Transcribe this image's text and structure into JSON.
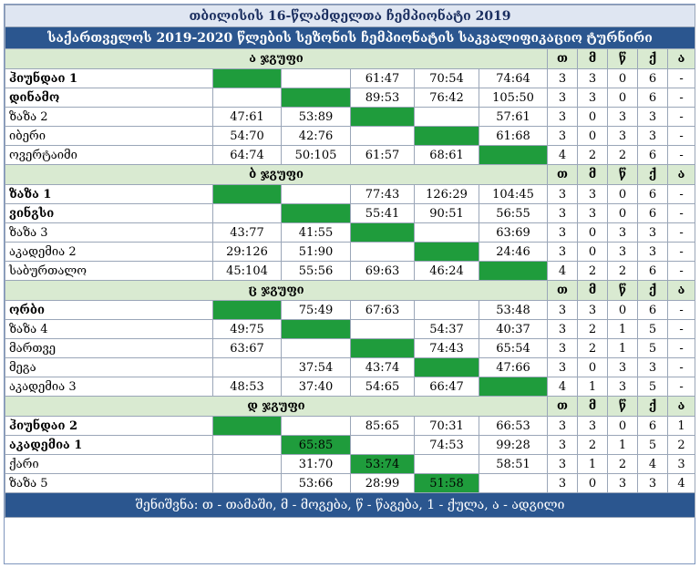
{
  "title": "თბილისის 16-წლამდელთა ჩემპიონატი 2019",
  "subtitle": "საქართველოს 2019-2020 წლების სეზონის ჩემპიონატის საკვალიფიკაციო ტურნირი",
  "stat_headers": [
    "თ",
    "მ",
    "წ",
    "ქ",
    "ა"
  ],
  "groups": [
    {
      "name": "ა ჯგუფი",
      "rows": [
        {
          "team": "ჰიუნდაი 1",
          "bold": true,
          "scores": [
            "",
            "",
            "61:47",
            "70:54",
            "74:64"
          ],
          "stats": [
            "3",
            "3",
            "0",
            "6",
            "-"
          ]
        },
        {
          "team": "დინამო",
          "bold": true,
          "scores": [
            "",
            "",
            "89:53",
            "76:42",
            "105:50"
          ],
          "stats": [
            "3",
            "3",
            "0",
            "6",
            "-"
          ]
        },
        {
          "team": "ზაზა 2",
          "bold": false,
          "scores": [
            "47:61",
            "53:89",
            "",
            "",
            "57:61"
          ],
          "stats": [
            "3",
            "0",
            "3",
            "3",
            "-"
          ]
        },
        {
          "team": "იბერი",
          "bold": false,
          "scores": [
            "54:70",
            "42:76",
            "",
            "",
            "61:68"
          ],
          "stats": [
            "3",
            "0",
            "3",
            "3",
            "-"
          ]
        },
        {
          "team": "ოვერტაიმი",
          "bold": false,
          "scores": [
            "64:74",
            "50:105",
            "61:57",
            "68:61",
            ""
          ],
          "stats": [
            "4",
            "2",
            "2",
            "6",
            "-"
          ]
        }
      ]
    },
    {
      "name": "ბ ჯგუფი",
      "rows": [
        {
          "team": "ზაზა 1",
          "bold": true,
          "scores": [
            "",
            "",
            "77:43",
            "126:29",
            "104:45"
          ],
          "stats": [
            "3",
            "3",
            "0",
            "6",
            "-"
          ]
        },
        {
          "team": "ვინგსი",
          "bold": true,
          "scores": [
            "",
            "",
            "55:41",
            "90:51",
            "56:55"
          ],
          "stats": [
            "3",
            "3",
            "0",
            "6",
            "-"
          ]
        },
        {
          "team": "ზაზა 3",
          "bold": false,
          "scores": [
            "43:77",
            "41:55",
            "",
            "",
            "63:69"
          ],
          "stats": [
            "3",
            "0",
            "3",
            "3",
            "-"
          ]
        },
        {
          "team": "აკადემია 2",
          "bold": false,
          "scores": [
            "29:126",
            "51:90",
            "",
            "",
            "24:46"
          ],
          "stats": [
            "3",
            "0",
            "3",
            "3",
            "-"
          ]
        },
        {
          "team": "საბურთალო",
          "bold": false,
          "scores": [
            "45:104",
            "55:56",
            "69:63",
            "46:24",
            ""
          ],
          "stats": [
            "4",
            "2",
            "2",
            "6",
            "-"
          ]
        }
      ]
    },
    {
      "name": "ც ჯგუფი",
      "rows": [
        {
          "team": "ორბი",
          "bold": true,
          "scores": [
            "",
            "75:49",
            "67:63",
            "",
            "53:48"
          ],
          "stats": [
            "3",
            "3",
            "0",
            "6",
            "-"
          ]
        },
        {
          "team": "ზაზა 4",
          "bold": false,
          "scores": [
            "49:75",
            "",
            "",
            "54:37",
            "40:37"
          ],
          "stats": [
            "3",
            "2",
            "1",
            "5",
            "-"
          ]
        },
        {
          "team": "მართვე",
          "bold": false,
          "scores": [
            "63:67",
            "",
            "",
            "74:43",
            "65:54"
          ],
          "stats": [
            "3",
            "2",
            "1",
            "5",
            "-"
          ]
        },
        {
          "team": "მეგა",
          "bold": false,
          "scores": [
            "",
            "37:54",
            "43:74",
            "",
            "47:66"
          ],
          "stats": [
            "3",
            "0",
            "3",
            "3",
            "-"
          ]
        },
        {
          "team": "აკადემია 3",
          "bold": false,
          "scores": [
            "48:53",
            "37:40",
            "54:65",
            "66:47",
            ""
          ],
          "stats": [
            "4",
            "1",
            "3",
            "5",
            "-"
          ]
        }
      ]
    },
    {
      "name": "დ ჯგუფი",
      "rows": [
        {
          "team": "ჰიუნდაი 2",
          "bold": true,
          "scores": [
            "",
            "",
            "85:65",
            "70:31",
            "66:53"
          ],
          "stats": [
            "3",
            "3",
            "0",
            "6",
            "1"
          ]
        },
        {
          "team": "აკადემია 1",
          "bold": true,
          "scores": [
            "",
            "65:85",
            "",
            "74:53",
            "99:28"
          ],
          "stats": [
            "3",
            "2",
            "1",
            "5",
            "2"
          ]
        },
        {
          "team": "ქარი",
          "bold": false,
          "scores": [
            "",
            "31:70",
            "53:74",
            "",
            "58:51"
          ],
          "stats": [
            "3",
            "1",
            "2",
            "4",
            "3"
          ]
        },
        {
          "team": "ზაზა 5",
          "bold": false,
          "scores": [
            "",
            "53:66",
            "28:99",
            "51:58",
            ""
          ],
          "stats": [
            "3",
            "0",
            "3",
            "3",
            "4"
          ]
        }
      ]
    }
  ],
  "footer": "შენიშვნა: თ - თამაში, მ - მოგება, წ - წაგება, 1 - ქულა, ა - ადგილი",
  "colors": {
    "header_bg": "#2b568f",
    "group_bg": "#d9ead1",
    "self_cell": "#1f9c3c"
  }
}
